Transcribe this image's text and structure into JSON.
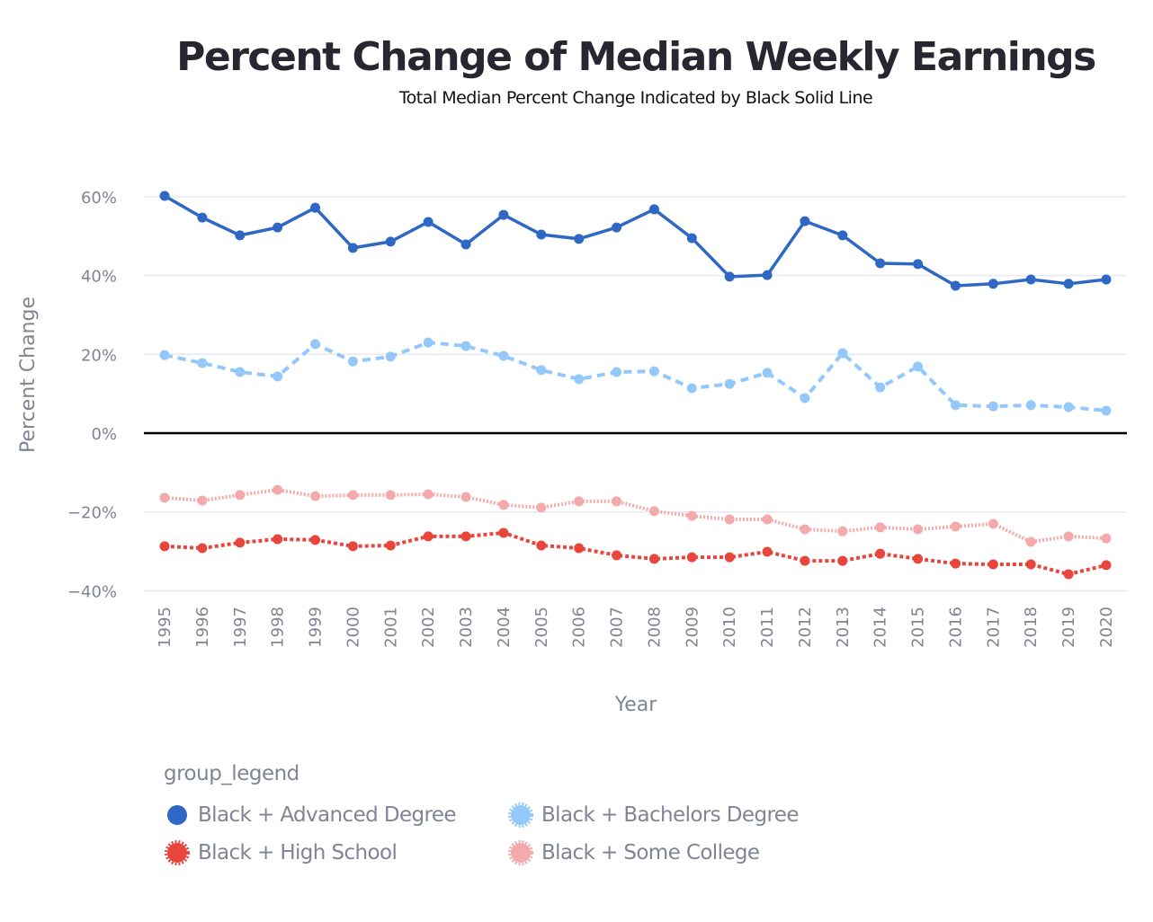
{
  "chart_data": {
    "type": "line",
    "title": "Percent Change of Median Weekly Earnings",
    "subtitle": "Total Median Percent Change Indicated by Black Solid Line",
    "xlabel": "Year",
    "ylabel": "Percent Change",
    "ylim": [
      -45,
      70
    ],
    "yticks": [
      60,
      40,
      20,
      0,
      -20,
      -40
    ],
    "ytick_labels": [
      "60%",
      "40%",
      "20%",
      "0%",
      "−20%",
      "−40%"
    ],
    "grid": true,
    "zero_line": {
      "value": 0,
      "color": "#000000",
      "style": "solid"
    },
    "x": [
      "1995",
      "1996",
      "1997",
      "1998",
      "1999",
      "2000",
      "2001",
      "2002",
      "2003",
      "2004",
      "2005",
      "2006",
      "2007",
      "2008",
      "2009",
      "2010",
      "2011",
      "2012",
      "2013",
      "2014",
      "2015",
      "2016",
      "2017",
      "2018",
      "2019",
      "2020"
    ],
    "legend": {
      "title": "group_legend",
      "placement": "bottom-left"
    },
    "series": [
      {
        "name": "Black + Advanced Degree",
        "color": "#2e67c4",
        "dash": "solid",
        "values": [
          60.2,
          54.7,
          50.2,
          52.2,
          57.2,
          47.0,
          48.6,
          53.6,
          47.9,
          55.4,
          50.4,
          49.3,
          52.2,
          56.8,
          49.5,
          39.7,
          40.1,
          53.8,
          50.2,
          43.1,
          42.9,
          37.4,
          37.9,
          39.0,
          37.9,
          39.0
        ]
      },
      {
        "name": "Black + Bachelors Degree",
        "color": "#94c8fb",
        "dash": "dash",
        "values": [
          19.8,
          17.8,
          15.5,
          14.4,
          22.6,
          18.2,
          19.4,
          23.0,
          22.1,
          19.6,
          16.0,
          13.7,
          15.5,
          15.7,
          11.4,
          12.5,
          15.3,
          8.9,
          20.3,
          11.6,
          16.9,
          7.1,
          6.8,
          7.1,
          6.6,
          5.7
        ]
      },
      {
        "name": "Black + High School",
        "color": "#e8453c",
        "dash": "dot-heavy",
        "values": [
          -28.7,
          -29.2,
          -27.8,
          -26.9,
          -27.1,
          -28.7,
          -28.5,
          -26.2,
          -26.2,
          -25.3,
          -28.5,
          -29.2,
          -31.0,
          -31.9,
          -31.5,
          -31.5,
          -30.1,
          -32.4,
          -32.4,
          -30.6,
          -31.9,
          -33.1,
          -33.3,
          -33.3,
          -35.8,
          -33.5
        ]
      },
      {
        "name": "Black + Some College",
        "color": "#f4aaaa",
        "dash": "dot",
        "values": [
          -16.4,
          -17.1,
          -15.7,
          -14.4,
          -16.0,
          -15.7,
          -15.7,
          -15.5,
          -16.2,
          -18.2,
          -18.9,
          -17.3,
          -17.3,
          -19.8,
          -21.0,
          -21.9,
          -21.9,
          -24.4,
          -24.9,
          -23.9,
          -24.4,
          -23.7,
          -23.0,
          -27.6,
          -26.2,
          -26.7
        ]
      }
    ]
  },
  "legend_order": [
    0,
    1,
    2,
    3
  ]
}
